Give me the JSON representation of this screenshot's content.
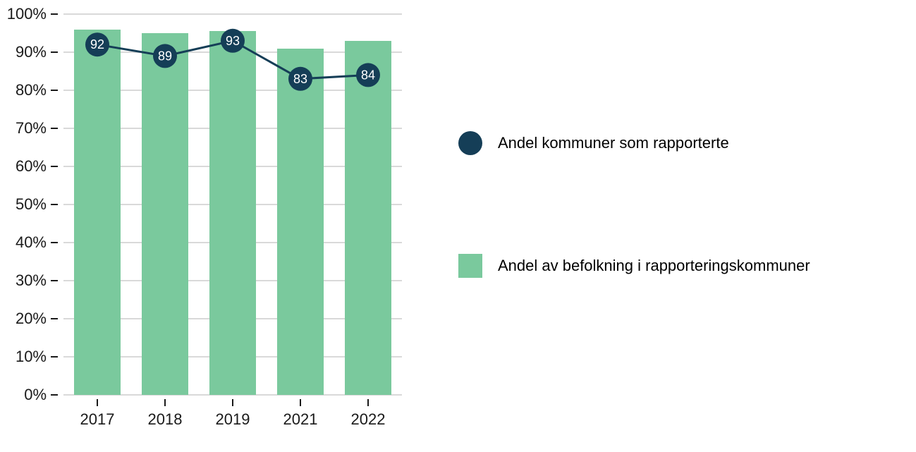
{
  "chart": {
    "type": "bar+line",
    "background_color": "#ffffff",
    "grid_color": "#d9d9d9",
    "axis_text_color": "#1a1a1a",
    "axis_fontsize": 22,
    "ylim": [
      0,
      100
    ],
    "ytick_step": 10,
    "y_suffix": "%",
    "categories": [
      "2017",
      "2018",
      "2019",
      "2021",
      "2022"
    ],
    "bar_series": {
      "name": "Andel av befolkning i rapporteringskommuner",
      "color": "#7ac99d",
      "bar_width": 0.68,
      "values": [
        96,
        95,
        95.5,
        91,
        93
      ]
    },
    "line_series": {
      "name": "Andel kommuner som rapporterte",
      "line_color": "#153e57",
      "line_width": 3,
      "marker_color": "#153e57",
      "marker_radius": 17,
      "marker_label_color": "#ffffff",
      "marker_label_fontsize": 18,
      "values": [
        92,
        89,
        93,
        83,
        84
      ]
    },
    "legend": {
      "items": [
        {
          "kind": "circle",
          "color": "#153e57",
          "label": "Andel kommuner som rapporterte"
        },
        {
          "kind": "square",
          "color": "#7ac99d",
          "label": "Andel av befolkning i rapporteringskommuner"
        }
      ]
    }
  }
}
